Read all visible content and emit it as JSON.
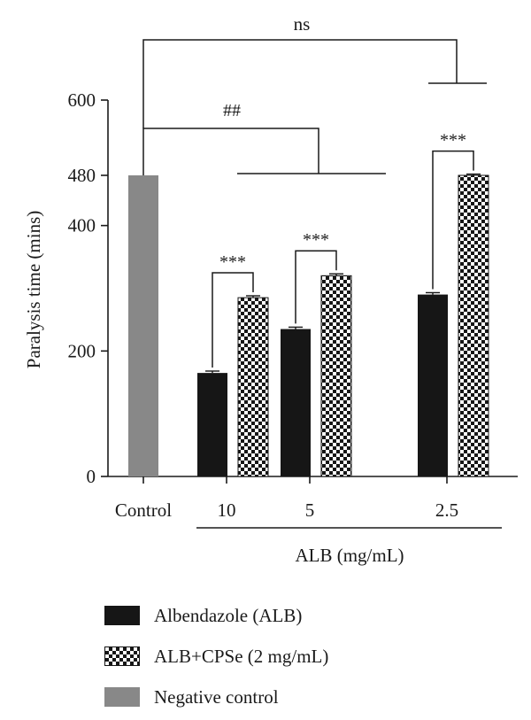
{
  "chart_data": {
    "type": "bar",
    "categories": [
      "Control",
      "10",
      "5",
      "2.5"
    ],
    "xlabel": "ALB (mg/mL)",
    "ylabel": "Paralysis time (mins)",
    "yticks": [
      0,
      200,
      400,
      480,
      600
    ],
    "ylim": [
      0,
      600
    ],
    "series": [
      {
        "name": "Negative control",
        "key": "neg",
        "color": "#888888",
        "pattern": "solid",
        "values": [
          480,
          null,
          null,
          null
        ],
        "errors": [
          0,
          null,
          null,
          null
        ]
      },
      {
        "name": "Albendazole (ALB)",
        "key": "alb",
        "color": "#161616",
        "pattern": "solid",
        "values": [
          null,
          165,
          235,
          290
        ],
        "errors": [
          null,
          3,
          3,
          3
        ]
      },
      {
        "name": "ALB+CPSe (2 mg/mL)",
        "key": "cpse",
        "color": "#161616",
        "pattern": "checker",
        "values": [
          null,
          285,
          320,
          480
        ],
        "errors": [
          null,
          3,
          3,
          2
        ]
      }
    ],
    "significance": {
      "pairwise": [
        {
          "category": "10",
          "label": "***"
        },
        {
          "category": "5",
          "label": "***"
        },
        {
          "category": "2.5",
          "label": "***"
        }
      ],
      "control_vs_groups": {
        "label": "##"
      },
      "control_vs_last": {
        "label": "ns"
      }
    },
    "legend_position": "bottom",
    "grid": false
  },
  "legend": [
    {
      "label": "Albendazole (ALB)",
      "swatch": "solid"
    },
    {
      "label": "ALB+CPSe (2 mg/mL)",
      "swatch": "checker"
    },
    {
      "label": "Negative control",
      "swatch": "grey"
    }
  ]
}
